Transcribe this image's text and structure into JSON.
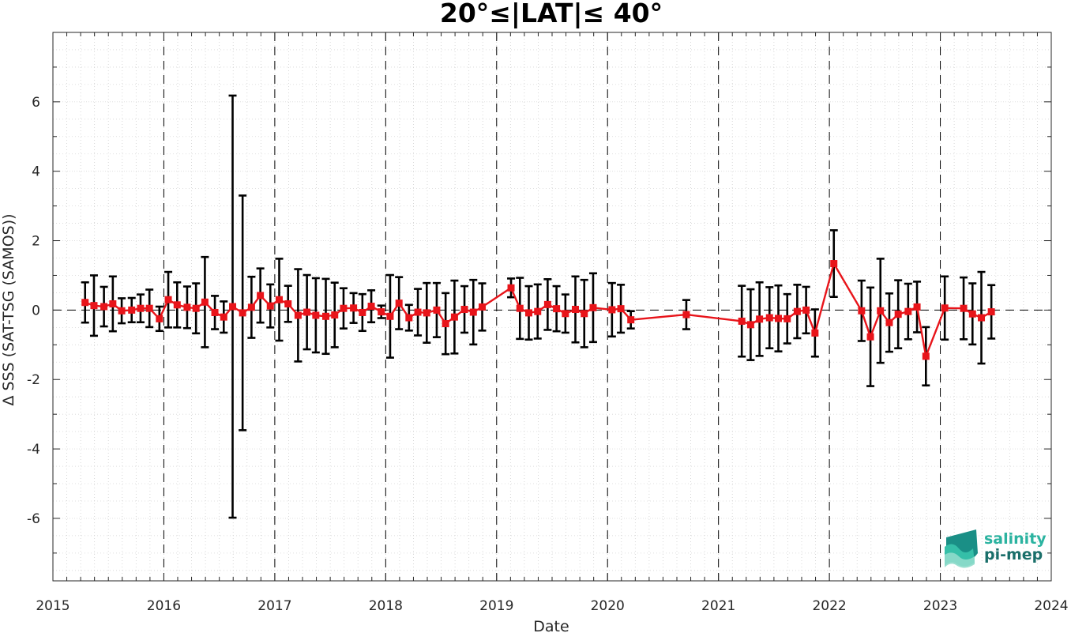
{
  "chart_data": {
    "type": "line",
    "title": "20°≤|LAT|≤ 40°",
    "xlabel": "Date",
    "ylabel": "Δ SSS (SAT-TSG (SAMOS))",
    "xlim": [
      2015.0,
      2024.0
    ],
    "ylim": [
      -7.8,
      8.0
    ],
    "x_ticks": [
      "2015",
      "2016",
      "2017",
      "2018",
      "2019",
      "2020",
      "2021",
      "2022",
      "2023",
      "2024"
    ],
    "y_ticks": [
      "-6",
      "-4",
      "-2",
      "0",
      "2",
      "4",
      "6"
    ],
    "grid": "minor dotted",
    "year_separators": [
      2016,
      2017,
      2018,
      2019,
      2020,
      2021,
      2022,
      2023
    ],
    "zero_line": true,
    "marker_color": "#e8141a",
    "line_color": "#e8141a",
    "errorbar_color": "#000000",
    "series": [
      {
        "points": [
          {
            "x": 2015.29,
            "y": 0.22,
            "err": 0.58
          },
          {
            "x": 2015.37,
            "y": 0.13,
            "err": 0.87
          },
          {
            "x": 2015.46,
            "y": 0.1,
            "err": 0.57
          },
          {
            "x": 2015.54,
            "y": 0.18,
            "err": 0.79
          },
          {
            "x": 2015.62,
            "y": -0.02,
            "err": 0.36
          },
          {
            "x": 2015.71,
            "y": 0.0,
            "err": 0.35
          },
          {
            "x": 2015.79,
            "y": 0.05,
            "err": 0.4
          },
          {
            "x": 2015.87,
            "y": 0.05,
            "err": 0.54
          },
          {
            "x": 2015.96,
            "y": -0.25,
            "err": 0.35
          },
          {
            "x": 2016.04,
            "y": 0.3,
            "err": 0.8
          },
          {
            "x": 2016.12,
            "y": 0.15,
            "err": 0.65
          },
          {
            "x": 2016.21,
            "y": 0.08,
            "err": 0.6
          },
          {
            "x": 2016.29,
            "y": 0.05,
            "err": 0.72
          },
          {
            "x": 2016.37,
            "y": 0.23,
            "err": 1.3
          },
          {
            "x": 2016.46,
            "y": -0.07,
            "err": 0.48
          },
          {
            "x": 2016.54,
            "y": -0.2,
            "err": 0.45
          },
          {
            "x": 2016.62,
            "y": 0.1,
            "err": 6.08
          },
          {
            "x": 2016.71,
            "y": -0.08,
            "err": 3.38
          },
          {
            "x": 2016.79,
            "y": 0.08,
            "err": 0.88
          },
          {
            "x": 2016.87,
            "y": 0.42,
            "err": 0.78
          },
          {
            "x": 2016.96,
            "y": 0.12,
            "err": 0.62
          },
          {
            "x": 2017.04,
            "y": 0.3,
            "err": 1.18
          },
          {
            "x": 2017.12,
            "y": 0.18,
            "err": 0.52
          },
          {
            "x": 2017.21,
            "y": -0.15,
            "err": 1.33
          },
          {
            "x": 2017.29,
            "y": -0.06,
            "err": 1.07
          },
          {
            "x": 2017.37,
            "y": -0.15,
            "err": 1.07
          },
          {
            "x": 2017.46,
            "y": -0.18,
            "err": 1.08
          },
          {
            "x": 2017.54,
            "y": -0.14,
            "err": 0.93
          },
          {
            "x": 2017.62,
            "y": 0.05,
            "err": 0.58
          },
          {
            "x": 2017.71,
            "y": 0.06,
            "err": 0.43
          },
          {
            "x": 2017.79,
            "y": -0.07,
            "err": 0.53
          },
          {
            "x": 2017.87,
            "y": 0.11,
            "err": 0.46
          },
          {
            "x": 2017.96,
            "y": -0.05,
            "err": 0.18
          },
          {
            "x": 2018.04,
            "y": -0.18,
            "err": 1.19
          },
          {
            "x": 2018.12,
            "y": 0.2,
            "err": 0.75
          },
          {
            "x": 2018.21,
            "y": -0.22,
            "err": 0.37
          },
          {
            "x": 2018.29,
            "y": -0.06,
            "err": 0.67
          },
          {
            "x": 2018.37,
            "y": -0.08,
            "err": 0.86
          },
          {
            "x": 2018.46,
            "y": 0.0,
            "err": 0.78
          },
          {
            "x": 2018.54,
            "y": -0.39,
            "err": 0.88
          },
          {
            "x": 2018.62,
            "y": -0.2,
            "err": 1.05
          },
          {
            "x": 2018.71,
            "y": 0.02,
            "err": 0.67
          },
          {
            "x": 2018.79,
            "y": -0.06,
            "err": 0.93
          },
          {
            "x": 2018.87,
            "y": 0.09,
            "err": 0.68
          },
          {
            "x": 2019.13,
            "y": 0.64,
            "err": 0.27
          },
          {
            "x": 2019.21,
            "y": 0.05,
            "err": 0.88
          },
          {
            "x": 2019.29,
            "y": -0.08,
            "err": 0.77
          },
          {
            "x": 2019.37,
            "y": -0.04,
            "err": 0.78
          },
          {
            "x": 2019.46,
            "y": 0.16,
            "err": 0.73
          },
          {
            "x": 2019.54,
            "y": 0.04,
            "err": 0.65
          },
          {
            "x": 2019.62,
            "y": -0.1,
            "err": 0.55
          },
          {
            "x": 2019.71,
            "y": 0.02,
            "err": 0.95
          },
          {
            "x": 2019.79,
            "y": -0.1,
            "err": 0.97
          },
          {
            "x": 2019.87,
            "y": 0.07,
            "err": 0.99
          },
          {
            "x": 2020.04,
            "y": 0.01,
            "err": 0.77
          },
          {
            "x": 2020.12,
            "y": 0.04,
            "err": 0.69
          },
          {
            "x": 2020.21,
            "y": -0.28,
            "err": 0.25
          },
          {
            "x": 2020.71,
            "y": -0.13,
            "err": 0.42
          },
          {
            "x": 2021.21,
            "y": -0.32,
            "err": 1.02
          },
          {
            "x": 2021.29,
            "y": -0.42,
            "err": 1.02
          },
          {
            "x": 2021.37,
            "y": -0.26,
            "err": 1.06
          },
          {
            "x": 2021.46,
            "y": -0.22,
            "err": 0.88
          },
          {
            "x": 2021.54,
            "y": -0.24,
            "err": 0.95
          },
          {
            "x": 2021.62,
            "y": -0.25,
            "err": 0.71
          },
          {
            "x": 2021.71,
            "y": -0.04,
            "err": 0.77
          },
          {
            "x": 2021.79,
            "y": 0.0,
            "err": 0.67
          },
          {
            "x": 2021.87,
            "y": -0.66,
            "err": 0.68
          },
          {
            "x": 2022.04,
            "y": 1.34,
            "err": 0.96
          },
          {
            "x": 2022.29,
            "y": -0.02,
            "err": 0.87
          },
          {
            "x": 2022.37,
            "y": -0.77,
            "err": 1.42
          },
          {
            "x": 2022.46,
            "y": -0.02,
            "err": 1.5
          },
          {
            "x": 2022.54,
            "y": -0.36,
            "err": 0.84
          },
          {
            "x": 2022.62,
            "y": -0.12,
            "err": 0.98
          },
          {
            "x": 2022.71,
            "y": -0.04,
            "err": 0.8
          },
          {
            "x": 2022.79,
            "y": 0.09,
            "err": 0.73
          },
          {
            "x": 2022.87,
            "y": -1.33,
            "err": 0.84
          },
          {
            "x": 2023.04,
            "y": 0.06,
            "err": 0.91
          },
          {
            "x": 2023.21,
            "y": 0.05,
            "err": 0.89
          },
          {
            "x": 2023.29,
            "y": -0.11,
            "err": 0.88
          },
          {
            "x": 2023.37,
            "y": -0.22,
            "err": 1.32
          },
          {
            "x": 2023.46,
            "y": -0.05,
            "err": 0.77
          }
        ]
      }
    ]
  },
  "logo": {
    "line1": "salinity",
    "line2": "pi-mep",
    "color1": "#2bb3a0",
    "color2": "#1a6f6a"
  }
}
